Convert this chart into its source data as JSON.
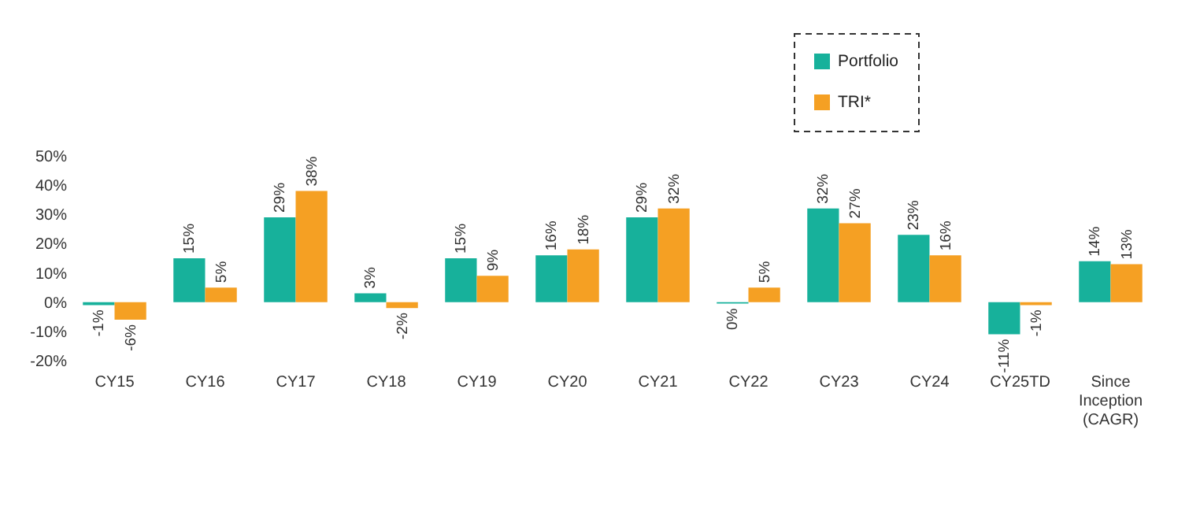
{
  "chart_data": {
    "type": "bar",
    "categories": [
      "CY15",
      "CY16",
      "CY17",
      "CY18",
      "CY19",
      "CY20",
      "CY21",
      "CY22",
      "CY23",
      "CY24",
      "CY25TD",
      "Since Inception (CAGR)"
    ],
    "series": [
      {
        "name": "Portfolio",
        "color": "#17b19b",
        "values": [
          -1,
          15,
          29,
          3,
          15,
          16,
          29,
          -0.5,
          32,
          23,
          -11,
          14
        ],
        "value_labels": [
          "-1%",
          "15%",
          "29%",
          "3%",
          "15%",
          "16%",
          "29%",
          "0%",
          "32%",
          "23%",
          "-11%",
          "14%"
        ]
      },
      {
        "name": "TRI*",
        "color": "#f5a023",
        "values": [
          -6,
          5,
          38,
          -2,
          9,
          18,
          32,
          5,
          27,
          16,
          -1,
          13
        ],
        "value_labels": [
          "-6%",
          "5%",
          "38%",
          "-2%",
          "9%",
          "18%",
          "32%",
          "5%",
          "27%",
          "16%",
          "-1%",
          "13%"
        ]
      }
    ],
    "ylim": [
      -20,
      50
    ],
    "yticks": [
      {
        "value": -20,
        "label": "-20%"
      },
      {
        "value": -10,
        "label": "-10%"
      },
      {
        "value": 0,
        "label": "0%"
      },
      {
        "value": 10,
        "label": "10%"
      },
      {
        "value": 20,
        "label": "20%"
      },
      {
        "value": 30,
        "label": "30%"
      },
      {
        "value": 40,
        "label": "40%"
      },
      {
        "value": 50,
        "label": "50%"
      }
    ],
    "legend": "top right",
    "grid": false
  }
}
